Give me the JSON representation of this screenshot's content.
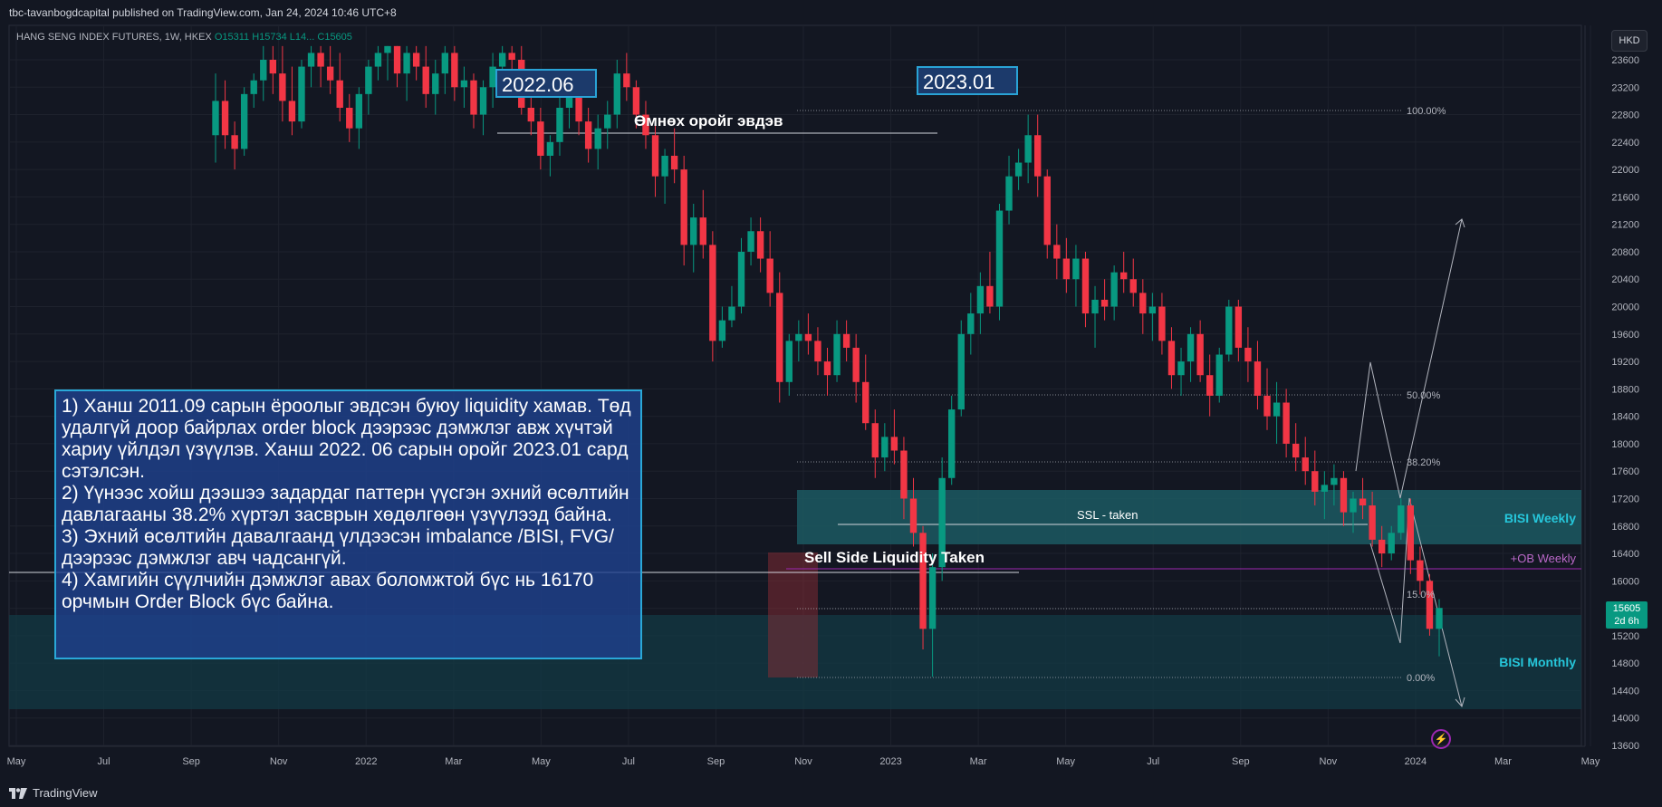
{
  "header": {
    "publisher": "tbc-tavanbogdcapital published on TradingView.com, Jan 24, 2024 10:46 UTC+8",
    "symbol": "HANG SENG INDEX FUTURES, 1W, HKEX",
    "ohlc": "O15311 H15734 L14... C15605",
    "currency_button": "HKD"
  },
  "footer": {
    "brand": "TradingView"
  },
  "annotations": {
    "date_label_1": "2022.06",
    "date_label_2": "2023.01",
    "prior_high_label": "Өмнөх оройг эвдэв",
    "ssl_label": "SSL - taken",
    "sell_side_label": "Sell Side Liquidity Taken",
    "bisi_weekly": "BISI Weekly",
    "ob_weekly": "+OB Weekly",
    "bisi_monthly": "BISI Monthly",
    "fib_levels": [
      "100.00%",
      "50.00%",
      "38.20%",
      "15.0%",
      "0.00%"
    ],
    "notes": [
      "1) Ханш 2011.09 сарын ёроолыг эвдсэн буюу liquidity хамав. Төд удалгүй доор байрлах order block дээрээс дэмжлэг авж хүчтэй хариу үйлдэл үзүүлэв. Ханш 2022. 06 сарын оройг 2023.01 сард сэтэлсэн.",
      "2) Үүнээс хойш дээшээ задардаг паттерн үүсгэн эхний өсөлтийн давлагааны 38.2% хүртэл засврын хөдөлгөөн үзүүлээд байна.",
      "3) Эхний өсөлтийн давалгаанд үлдээсэн imbalance /BISI, FVG/ дээрээс дэмжлэг авч чадсангүй.",
      "4) Хамгийн сүүлчийн дэмжлэг авах боломжтой бүс нь 16170 орчмын Order Block бүс байна."
    ]
  },
  "price_tag": {
    "value": "15605",
    "countdown": "2d 6h"
  },
  "colors": {
    "up": "#089981",
    "down": "#f23645",
    "background": "#131722"
  },
  "chart_data": {
    "type": "candlestick",
    "title": "HANG SENG INDEX FUTURES, 1W, HKEX",
    "y_axis": {
      "ylim": [
        13600,
        23800
      ],
      "ticks": [
        23600,
        23200,
        22800,
        22400,
        22000,
        21600,
        21200,
        20800,
        20400,
        20000,
        19600,
        19200,
        18800,
        18400,
        18000,
        17600,
        17200,
        16800,
        16400,
        16000,
        15600,
        15200,
        14800,
        14400,
        14000,
        13600
      ]
    },
    "x_axis": {
      "ticks": [
        "May",
        "Jul",
        "Sep",
        "Nov",
        "2022",
        "Mar",
        "May",
        "Jul",
        "Sep",
        "Nov",
        "2023",
        "Mar",
        "May",
        "Jul",
        "Sep",
        "Nov",
        "2024",
        "Mar",
        "May"
      ]
    },
    "ohlc": [
      [
        22500,
        23400,
        22100,
        23000
      ],
      [
        23000,
        23300,
        22300,
        22500
      ],
      [
        22500,
        22700,
        22000,
        22300
      ],
      [
        22300,
        23200,
        22200,
        23100
      ],
      [
        23100,
        23400,
        22900,
        23300
      ],
      [
        23300,
        23800,
        23000,
        23600
      ],
      [
        23600,
        23800,
        23100,
        23400
      ],
      [
        23400,
        23800,
        22700,
        23000
      ],
      [
        23000,
        23500,
        22500,
        22700
      ],
      [
        22700,
        23600,
        22600,
        23500
      ],
      [
        23500,
        23900,
        23200,
        23700
      ],
      [
        23700,
        23900,
        23200,
        23500
      ],
      [
        23500,
        23800,
        23100,
        23300
      ],
      [
        23300,
        23700,
        22700,
        22900
      ],
      [
        22900,
        23100,
        22400,
        22600
      ],
      [
        22600,
        23200,
        22300,
        23100
      ],
      [
        23100,
        23600,
        22800,
        23500
      ],
      [
        23500,
        23900,
        23300,
        23700
      ],
      [
        23700,
        24000,
        23300,
        23800
      ],
      [
        23800,
        24000,
        23200,
        23400
      ],
      [
        23400,
        23900,
        23000,
        23700
      ],
      [
        23700,
        24000,
        23300,
        23500
      ],
      [
        23500,
        23800,
        22900,
        23100
      ],
      [
        23100,
        23600,
        22800,
        23400
      ],
      [
        23400,
        23800,
        23100,
        23700
      ],
      [
        23700,
        23900,
        23000,
        23200
      ],
      [
        23200,
        23500,
        22900,
        23300
      ],
      [
        23300,
        23400,
        22600,
        22800
      ],
      [
        22800,
        23300,
        22500,
        23200
      ],
      [
        23200,
        23700,
        22900,
        23500
      ],
      [
        23500,
        23900,
        23200,
        23700
      ],
      [
        23700,
        24000,
        23400,
        23600
      ],
      [
        23600,
        23900,
        22800,
        22900
      ],
      [
        22900,
        23200,
        22500,
        22700
      ],
      [
        22700,
        22900,
        22000,
        22200
      ],
      [
        22200,
        22500,
        21900,
        22400
      ],
      [
        22400,
        23100,
        22200,
        22900
      ],
      [
        22900,
        23300,
        22600,
        23100
      ],
      [
        23100,
        23400,
        22500,
        22700
      ],
      [
        22700,
        22900,
        22100,
        22300
      ],
      [
        22300,
        22800,
        22000,
        22600
      ],
      [
        22600,
        23000,
        22300,
        22800
      ],
      [
        22800,
        23600,
        22600,
        23400
      ],
      [
        23400,
        23700,
        23000,
        23200
      ],
      [
        23200,
        23300,
        22600,
        22800
      ],
      [
        22800,
        23000,
        22300,
        22500
      ],
      [
        22500,
        22700,
        21600,
        21900
      ],
      [
        21900,
        22300,
        21500,
        22200
      ],
      [
        22200,
        22600,
        21800,
        22000
      ],
      [
        22000,
        22200,
        20600,
        20900
      ],
      [
        20900,
        21500,
        20500,
        21300
      ],
      [
        21300,
        21700,
        20700,
        20900
      ],
      [
        20900,
        21100,
        19200,
        19500
      ],
      [
        19500,
        20000,
        19400,
        19800
      ],
      [
        19800,
        20300,
        19700,
        20000
      ],
      [
        20000,
        21000,
        19900,
        20800
      ],
      [
        20800,
        21300,
        20600,
        21100
      ],
      [
        21100,
        21300,
        20500,
        20700
      ],
      [
        20700,
        21100,
        20000,
        20200
      ],
      [
        20200,
        20500,
        18600,
        18900
      ],
      [
        18900,
        19600,
        18700,
        19500
      ],
      [
        19500,
        19800,
        19200,
        19600
      ],
      [
        19600,
        19900,
        19300,
        19500
      ],
      [
        19500,
        19700,
        19000,
        19200
      ],
      [
        19200,
        19400,
        18700,
        19000
      ],
      [
        19000,
        19800,
        18900,
        19600
      ],
      [
        19600,
        19800,
        19200,
        19400
      ],
      [
        19400,
        19600,
        18600,
        18900
      ],
      [
        18900,
        19300,
        18200,
        18300
      ],
      [
        18300,
        18500,
        17500,
        17800
      ],
      [
        17800,
        18300,
        17600,
        18100
      ],
      [
        18100,
        18500,
        17700,
        17900
      ],
      [
        17900,
        18100,
        16900,
        17200
      ],
      [
        17200,
        17500,
        16500,
        16700
      ],
      [
        16700,
        16800,
        15000,
        15300
      ],
      [
        15300,
        16400,
        14600,
        16200
      ],
      [
        16200,
        17800,
        16000,
        17500
      ],
      [
        17500,
        18700,
        17400,
        18500
      ],
      [
        18500,
        19800,
        18400,
        19600
      ],
      [
        19600,
        20200,
        19300,
        19900
      ],
      [
        19900,
        20500,
        19600,
        20300
      ],
      [
        20300,
        20800,
        19900,
        20000
      ],
      [
        20000,
        21500,
        19800,
        21400
      ],
      [
        21400,
        22200,
        21200,
        21900
      ],
      [
        21900,
        22300,
        21700,
        22100
      ],
      [
        22100,
        22800,
        21800,
        22500
      ],
      [
        22500,
        22800,
        21600,
        21900
      ],
      [
        21900,
        22000,
        20700,
        20900
      ],
      [
        20900,
        21200,
        20400,
        20700
      ],
      [
        20700,
        21000,
        20200,
        20400
      ],
      [
        20400,
        20900,
        20000,
        20700
      ],
      [
        20700,
        20800,
        19700,
        19900
      ],
      [
        19900,
        20300,
        19400,
        20100
      ],
      [
        20100,
        20400,
        19800,
        20000
      ],
      [
        20000,
        20600,
        19800,
        20500
      ],
      [
        20500,
        20800,
        20200,
        20400
      ],
      [
        20400,
        20700,
        20000,
        20200
      ],
      [
        20200,
        20400,
        19600,
        19900
      ],
      [
        19900,
        20200,
        19500,
        20000
      ],
      [
        20000,
        20200,
        19300,
        19500
      ],
      [
        19500,
        19700,
        18800,
        19000
      ],
      [
        19000,
        19400,
        18700,
        19200
      ],
      [
        19200,
        19700,
        18900,
        19600
      ],
      [
        19600,
        19800,
        18900,
        19000
      ],
      [
        19000,
        19300,
        18400,
        18700
      ],
      [
        18700,
        19400,
        18600,
        19300
      ],
      [
        19300,
        20100,
        19200,
        20000
      ],
      [
        20000,
        20100,
        19200,
        19400
      ],
      [
        19400,
        19700,
        18900,
        19200
      ],
      [
        19200,
        19500,
        18500,
        18700
      ],
      [
        18700,
        19100,
        18200,
        18400
      ],
      [
        18400,
        18900,
        18000,
        18600
      ],
      [
        18600,
        18800,
        17800,
        18000
      ],
      [
        18000,
        18300,
        17600,
        17800
      ],
      [
        17800,
        18100,
        17400,
        17600
      ],
      [
        17600,
        17900,
        17100,
        17300
      ],
      [
        17300,
        17600,
        16900,
        17400
      ],
      [
        17400,
        17700,
        17100,
        17500
      ],
      [
        17500,
        17600,
        16800,
        17000
      ],
      [
        17000,
        17300,
        16700,
        17200
      ],
      [
        17200,
        17500,
        16900,
        17100
      ],
      [
        17100,
        17300,
        16500,
        16600
      ],
      [
        16600,
        16800,
        16200,
        16400
      ],
      [
        16400,
        16800,
        16300,
        16700
      ],
      [
        16700,
        17200,
        16600,
        17100
      ],
      [
        17100,
        17200,
        16100,
        16300
      ],
      [
        16300,
        16500,
        15800,
        16000
      ],
      [
        16000,
        16100,
        15200,
        15300
      ],
      [
        15300,
        15734,
        14900,
        15605
      ]
    ],
    "zones": {
      "bisi_weekly": [
        16550,
        17300
      ],
      "ob_weekly": 16170,
      "bisi_monthly": [
        14300,
        15500
      ]
    }
  }
}
